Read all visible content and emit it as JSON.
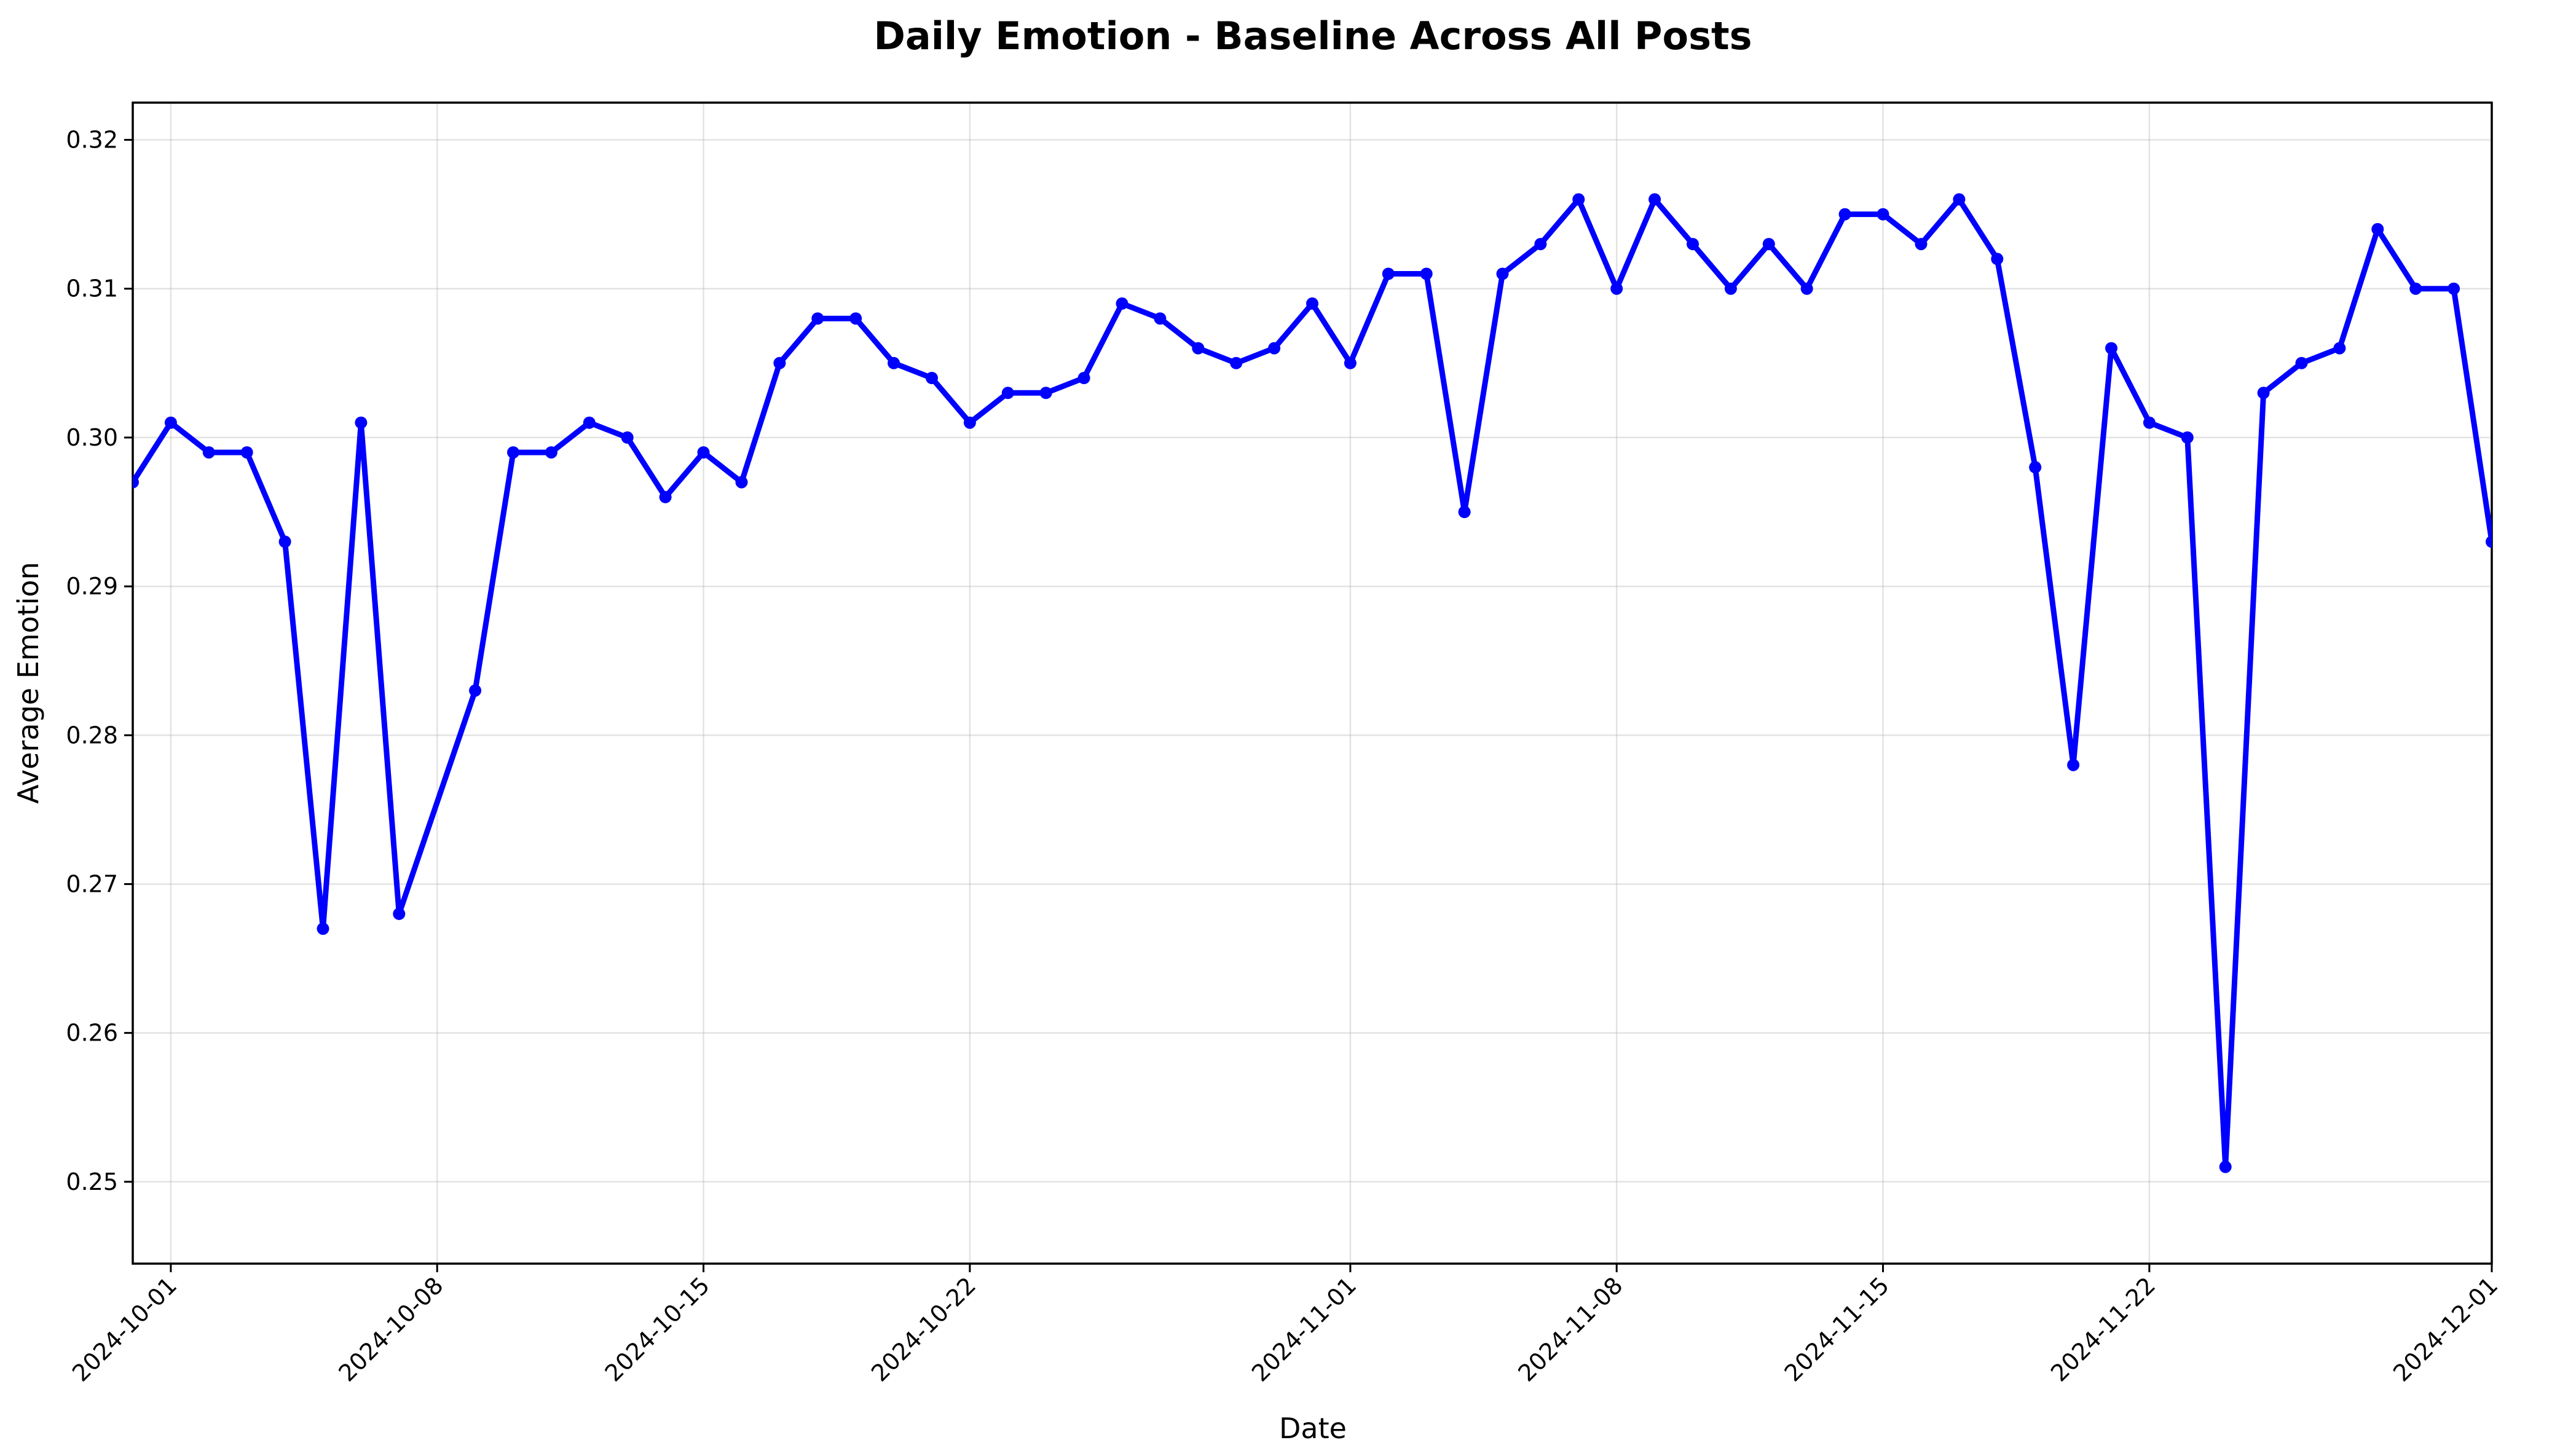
{
  "chart_data": {
    "type": "line",
    "title": "Daily Emotion - Baseline Across All Posts",
    "xlabel": "Date",
    "ylabel": "Average Emotion",
    "x_tick_labels": [
      "2024-10-01",
      "2024-10-08",
      "2024-10-15",
      "2024-10-22",
      "2024-11-01",
      "2024-11-08",
      "2024-11-15",
      "2024-11-22",
      "2024-12-01"
    ],
    "y_tick_labels": [
      "0.25",
      "0.26",
      "0.27",
      "0.28",
      "0.29",
      "0.30",
      "0.31",
      "0.32"
    ],
    "y_ticks": [
      0.25,
      0.26,
      0.27,
      0.28,
      0.29,
      0.3,
      0.31,
      0.32
    ],
    "xlim": [
      "2024-09-30",
      "2024-12-01"
    ],
    "ylim": [
      0.2445,
      0.3225
    ],
    "grid": true,
    "color": "#0000ff",
    "marker": "circle",
    "x": [
      "2024-09-30",
      "2024-10-01",
      "2024-10-02",
      "2024-10-03",
      "2024-10-04",
      "2024-10-05",
      "2024-10-06",
      "2024-10-07",
      "2024-10-09",
      "2024-10-10",
      "2024-10-11",
      "2024-10-12",
      "2024-10-13",
      "2024-10-14",
      "2024-10-15",
      "2024-10-16",
      "2024-10-17",
      "2024-10-18",
      "2024-10-19",
      "2024-10-20",
      "2024-10-21",
      "2024-10-22",
      "2024-10-23",
      "2024-10-24",
      "2024-10-25",
      "2024-10-26",
      "2024-10-27",
      "2024-10-28",
      "2024-10-29",
      "2024-10-30",
      "2024-10-31",
      "2024-11-01",
      "2024-11-02",
      "2024-11-03",
      "2024-11-04",
      "2024-11-05",
      "2024-11-06",
      "2024-11-07",
      "2024-11-08",
      "2024-11-09",
      "2024-11-10",
      "2024-11-11",
      "2024-11-12",
      "2024-11-13",
      "2024-11-14",
      "2024-11-15",
      "2024-11-16",
      "2024-11-17",
      "2024-11-18",
      "2024-11-19",
      "2024-11-20",
      "2024-11-21",
      "2024-11-22",
      "2024-11-23",
      "2024-11-24",
      "2024-11-25",
      "2024-11-26",
      "2024-11-27",
      "2024-11-28",
      "2024-11-29",
      "2024-11-30",
      "2024-12-01"
    ],
    "series": [
      {
        "values": [
          0.297,
          0.301,
          0.299,
          0.299,
          0.293,
          0.267,
          0.301,
          0.268,
          0.283,
          0.299,
          0.299,
          0.301,
          0.3,
          0.296,
          0.299,
          0.297,
          0.305,
          0.308,
          0.308,
          0.305,
          0.304,
          0.301,
          0.303,
          0.303,
          0.304,
          0.309,
          0.308,
          0.306,
          0.305,
          0.306,
          0.309,
          0.305,
          0.311,
          0.311,
          0.295,
          0.311,
          0.313,
          0.316,
          0.31,
          0.316,
          0.313,
          0.31,
          0.313,
          0.31,
          0.315,
          0.315,
          0.313,
          0.316,
          0.312,
          0.298,
          0.278,
          0.306,
          0.301,
          0.3,
          0.251,
          0.303,
          0.305,
          0.306,
          0.314,
          0.31,
          0.31,
          0.293
        ]
      }
    ]
  }
}
